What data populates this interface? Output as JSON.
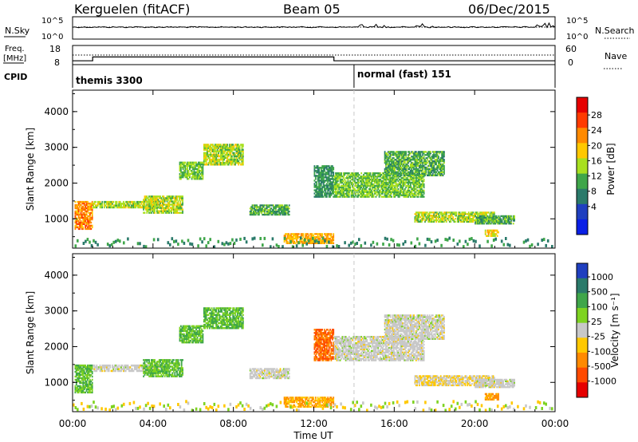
{
  "header": {
    "radar": "Kerguelen (fitACF)",
    "beam": "Beam 05",
    "date": "06/Dec/2015"
  },
  "noise_panel": {
    "left_label": "N.Sky",
    "right_label": "N.Search",
    "left_ticks": [
      "10^5",
      "10^0"
    ],
    "right_ticks": [
      "10^5",
      "10^0"
    ]
  },
  "freq_panel": {
    "left_label_1": "Freq.",
    "left_label_2": "[MHz]",
    "right_label": "Nave",
    "left_ticks": [
      "18",
      "8"
    ],
    "right_ticks": [
      "60",
      "0"
    ]
  },
  "cpid_panel": {
    "label": "CPID",
    "modes": [
      "themis 3300",
      "normal (fast) 151"
    ]
  },
  "axes": {
    "xlabel": "Time UT",
    "ylabel": "Slant Range [km]",
    "x_ticks": [
      "00:00",
      "04:00",
      "08:00",
      "12:00",
      "16:00",
      "20:00",
      "00:00"
    ],
    "y_ticks": [
      "1000",
      "2000",
      "3000",
      "4000"
    ]
  },
  "power_colorbar": {
    "label": "Power [dB]",
    "ticks": [
      "28",
      "24",
      "20",
      "16",
      "12",
      "8",
      "4"
    ],
    "colors": [
      "#e60000",
      "#ff3b00",
      "#ff8a00",
      "#ffc800",
      "#a8e020",
      "#3fa64a",
      "#2a7a6a",
      "#1f3fbf",
      "#0a1fe6"
    ]
  },
  "velocity_colorbar": {
    "label": "Velocity [m s⁻¹]",
    "ticks": [
      "1000",
      "500",
      "100",
      "25",
      "-25",
      "-100",
      "-500",
      "-1000"
    ],
    "colors": [
      "#1f3fbf",
      "#2a7a6a",
      "#3fa64a",
      "#7ed321",
      "#c8c8c8",
      "#ffc800",
      "#ff8a00",
      "#ff4a00",
      "#e60000"
    ]
  },
  "chart_data": {
    "type": "heatmap",
    "xlim_hours": [
      0,
      24
    ],
    "ylim_km": [
      180,
      4600
    ],
    "mode_change_hour": 14.0,
    "freq_steps": [
      {
        "start": 0.0,
        "end": 1.0,
        "mhz": 10
      },
      {
        "start": 1.0,
        "end": 13.0,
        "mhz": 12
      },
      {
        "start": 13.0,
        "end": 24.0,
        "mhz": 10
      }
    ],
    "power_blobs": [
      {
        "t0": 0.1,
        "t1": 1.0,
        "r0": 700,
        "r1": 1500,
        "level": 24
      },
      {
        "t0": 1.0,
        "t1": 4.5,
        "r0": 1300,
        "r1": 1500,
        "level": 16
      },
      {
        "t0": 3.5,
        "t1": 5.5,
        "r0": 1150,
        "r1": 1650,
        "level": 16
      },
      {
        "t0": 5.3,
        "t1": 6.5,
        "r0": 2100,
        "r1": 2600,
        "level": 14
      },
      {
        "t0": 6.5,
        "t1": 8.5,
        "r0": 2500,
        "r1": 3100,
        "level": 16
      },
      {
        "t0": 8.8,
        "t1": 10.8,
        "r0": 1100,
        "r1": 1400,
        "level": 12
      },
      {
        "t0": 10.5,
        "t1": 13.0,
        "r0": 300,
        "r1": 600,
        "level": 22
      },
      {
        "t0": 12.0,
        "t1": 13.0,
        "r0": 1600,
        "r1": 2500,
        "level": 10
      },
      {
        "t0": 13.0,
        "t1": 17.5,
        "r0": 1600,
        "r1": 2300,
        "level": 14
      },
      {
        "t0": 15.5,
        "t1": 18.5,
        "r0": 2200,
        "r1": 2900,
        "level": 12
      },
      {
        "t0": 17.0,
        "t1": 21.0,
        "r0": 900,
        "r1": 1200,
        "level": 16
      },
      {
        "t0": 20.0,
        "t1": 22.0,
        "r0": 850,
        "r1": 1100,
        "level": 12
      },
      {
        "t0": 20.5,
        "t1": 21.2,
        "r0": 500,
        "r1": 700,
        "level": 20
      }
    ],
    "velocity_blobs": [
      {
        "t0": 0.1,
        "t1": 1.0,
        "r0": 700,
        "r1": 1500,
        "v": 100
      },
      {
        "t0": 1.0,
        "t1": 4.5,
        "r0": 1300,
        "r1": 1500,
        "v": 0
      },
      {
        "t0": 3.5,
        "t1": 5.5,
        "r0": 1150,
        "r1": 1650,
        "v": 100
      },
      {
        "t0": 5.3,
        "t1": 6.5,
        "r0": 2100,
        "r1": 2600,
        "v": 100
      },
      {
        "t0": 6.5,
        "t1": 8.5,
        "r0": 2500,
        "r1": 3100,
        "v": 100
      },
      {
        "t0": 8.8,
        "t1": 10.8,
        "r0": 1100,
        "r1": 1400,
        "v": 0
      },
      {
        "t0": 10.5,
        "t1": 13.0,
        "r0": 300,
        "r1": 600,
        "v": -100
      },
      {
        "t0": 12.0,
        "t1": 13.0,
        "r0": 1600,
        "r1": 2500,
        "v": -500
      },
      {
        "t0": 13.0,
        "t1": 17.5,
        "r0": 1600,
        "r1": 2300,
        "v": 0
      },
      {
        "t0": 15.5,
        "t1": 18.5,
        "r0": 2200,
        "r1": 2900,
        "v": 0
      },
      {
        "t0": 17.0,
        "t1": 21.0,
        "r0": 900,
        "r1": 1200,
        "v": -25
      },
      {
        "t0": 20.0,
        "t1": 22.0,
        "r0": 850,
        "r1": 1100,
        "v": 0
      },
      {
        "t0": 20.5,
        "t1": 21.2,
        "r0": 500,
        "r1": 700,
        "v": -100
      }
    ]
  }
}
